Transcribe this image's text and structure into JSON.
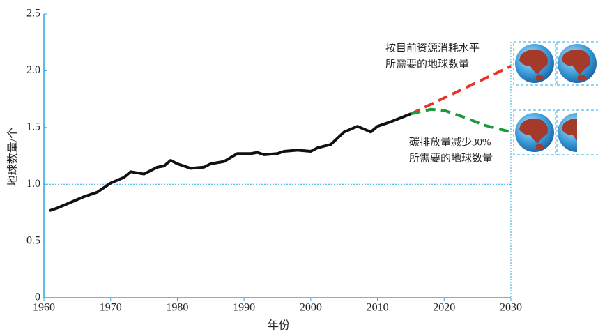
{
  "chart_data": {
    "type": "line",
    "x_label": "年份",
    "y_label": "地球数量/个",
    "xlim": [
      1960,
      2030
    ],
    "xticks": [
      1960,
      1970,
      1980,
      1990,
      2000,
      2010,
      2020,
      2030
    ],
    "ylim": [
      0,
      2.5
    ],
    "yticks": [
      0,
      0.5,
      {
        "value": 1.0,
        "label": "1.0"
      },
      1.5,
      {
        "value": 2.0,
        "label": "2.0"
      },
      2.5
    ],
    "reference_line": 1.0,
    "series": [
      {
        "color": "#111111",
        "dashed": false,
        "x": [
          1961,
          1962,
          1964,
          1966,
          1968,
          1970,
          1972,
          1973,
          1975,
          1977,
          1978,
          1979,
          1980,
          1982,
          1984,
          1985,
          1987,
          1989,
          1991,
          1992,
          1993,
          1995,
          1996,
          1998,
          2000,
          2001,
          2003,
          2005,
          2007,
          2009,
          2010,
          2012,
          2015
        ],
        "values": [
          0.77,
          0.79,
          0.84,
          0.89,
          0.93,
          1.01,
          1.06,
          1.11,
          1.09,
          1.15,
          1.16,
          1.21,
          1.18,
          1.14,
          1.15,
          1.18,
          1.2,
          1.27,
          1.27,
          1.28,
          1.26,
          1.27,
          1.29,
          1.3,
          1.29,
          1.32,
          1.35,
          1.46,
          1.51,
          1.46,
          1.51,
          1.55,
          1.62
        ]
      },
      {
        "color": "#e8332a",
        "dashed": true,
        "x": [
          2015,
          2020,
          2025,
          2030
        ],
        "values": [
          1.62,
          1.76,
          1.9,
          2.04
        ]
      },
      {
        "color": "#1a9a3a",
        "dashed": true,
        "x": [
          2015,
          2018,
          2020,
          2023,
          2026,
          2030
        ],
        "values": [
          1.62,
          1.66,
          1.65,
          1.59,
          1.52,
          1.46
        ]
      }
    ],
    "annotations": [
      {
        "lines": [
          "按目前资源消耗水平",
          "所需要的地球数量"
        ]
      },
      {
        "lines": [
          "碳排放量减少30%",
          "所需要的地球数量"
        ]
      }
    ]
  }
}
